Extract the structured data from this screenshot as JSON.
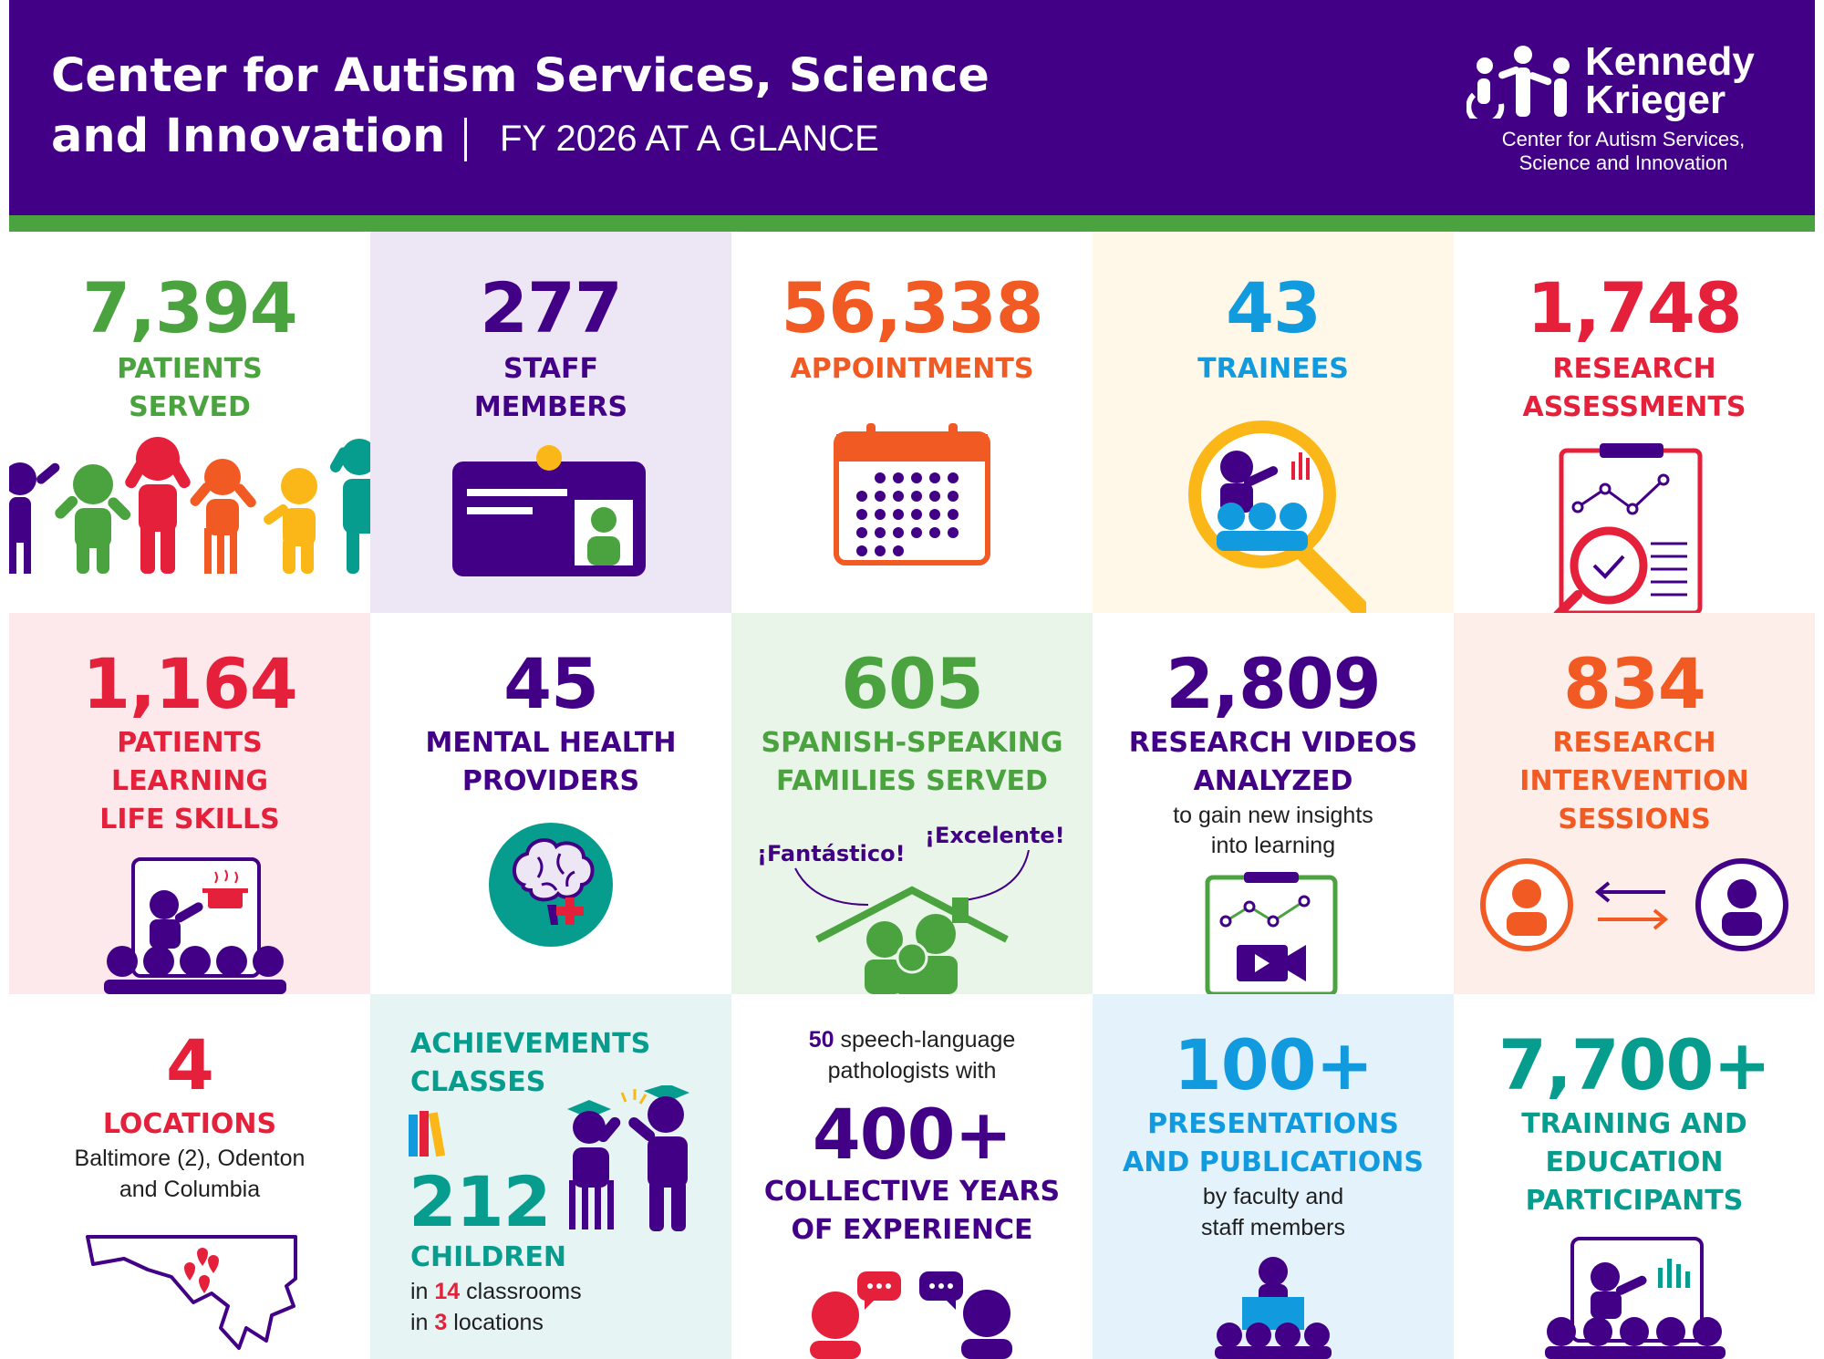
{
  "header": {
    "title_line1": "Center for Autism Services, Science",
    "title_line2": "and Innovation",
    "subtitle": "FY 2026 AT A GLANCE",
    "logo_line1": "Kennedy",
    "logo_line2": "Krieger",
    "logo_sub_line1": "Center for Autism Services,",
    "logo_sub_line2": "Science and Innovation"
  },
  "colors": {
    "header_purple": "#420086",
    "accent_green": "#4aa33f",
    "orange": "#f15a22",
    "blue": "#119bde",
    "red": "#e5203b",
    "teal": "#079d8e"
  },
  "stats": {
    "patients": {
      "value": "7,394",
      "label1": "PATIENTS",
      "label2": "SERVED"
    },
    "staff": {
      "value": "277",
      "label1": "STAFF",
      "label2": "MEMBERS"
    },
    "appointments": {
      "value": "56,338",
      "label1": "APPOINTMENTS"
    },
    "trainees": {
      "value": "43",
      "label1": "TRAINEES"
    },
    "assessments": {
      "value": "1,748",
      "label1": "RESEARCH",
      "label2": "ASSESSMENTS"
    },
    "life_skills": {
      "value": "1,164",
      "label1": "PATIENTS",
      "label2": "LEARNING",
      "label3": "LIFE SKILLS"
    },
    "mental_health": {
      "value": "45",
      "label1": "MENTAL HEALTH",
      "label2": "PROVIDERS"
    },
    "spanish": {
      "value": "605",
      "label1": "SPANISH-SPEAKING",
      "label2": "FAMILIES SERVED",
      "bubble1": "¡Fantástico!",
      "bubble2": "¡Excelente!"
    },
    "videos": {
      "value": "2,809",
      "label1": "RESEARCH VIDEOS",
      "label2": "ANALYZED",
      "sub1": "to gain new insights",
      "sub2": "into learning"
    },
    "intervention": {
      "value": "834",
      "label1": "RESEARCH",
      "label2": "INTERVENTION",
      "label3": "SESSIONS"
    },
    "locations": {
      "value": "4",
      "label1": "LOCATIONS",
      "sub1": "Baltimore (2), Odenton",
      "sub2": "and Columbia"
    },
    "achievements": {
      "label1": "ACHIEVEMENTS",
      "label2": "CLASSES",
      "value": "212",
      "label3": "CHILDREN",
      "sub1_pre": "in ",
      "sub1_num": "14",
      "sub1_post": " classrooms",
      "sub2_pre": "in ",
      "sub2_num": "3",
      "sub2_post": " locations"
    },
    "slp": {
      "pre_num": "50",
      "pre_text1": " speech-language",
      "pre_text2": "pathologists with",
      "value": "400+",
      "label1": "COLLECTIVE YEARS",
      "label2": "OF EXPERIENCE"
    },
    "presentations": {
      "value": "100+",
      "label1": "PRESENTATIONS",
      "label2": "AND PUBLICATIONS",
      "sub1": "by faculty and",
      "sub2": "staff members"
    },
    "training": {
      "value": "7,700+",
      "label1": "TRAINING AND",
      "label2": "EDUCATION",
      "label3": "PARTICIPANTS"
    }
  }
}
